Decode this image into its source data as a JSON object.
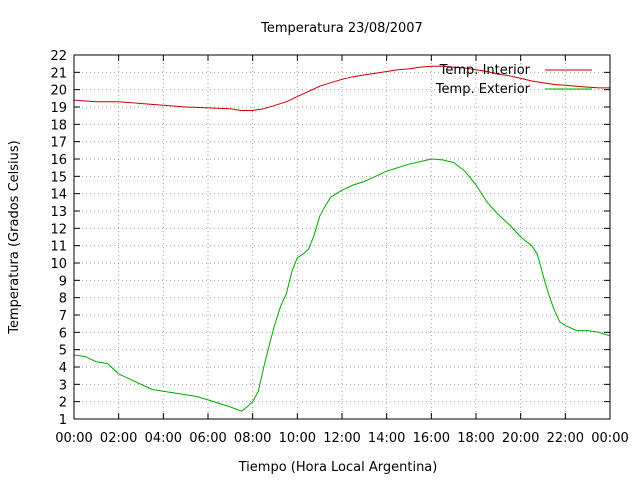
{
  "chart_data": {
    "type": "line",
    "title": "Temperatura 23/08/2007",
    "xlabel": "Tiempo (Hora Local Argentina)",
    "ylabel": "Temperatura (Grados Celsius)",
    "xlim": [
      0,
      24
    ],
    "ylim": [
      1,
      22
    ],
    "x_ticks": [
      "00:00",
      "02:00",
      "04:00",
      "06:00",
      "08:00",
      "10:00",
      "12:00",
      "14:00",
      "16:00",
      "18:00",
      "20:00",
      "22:00",
      "00:00"
    ],
    "y_ticks": [
      "1",
      "2",
      "3",
      "4",
      "5",
      "6",
      "7",
      "8",
      "9",
      "10",
      "11",
      "12",
      "13",
      "14",
      "15",
      "16",
      "17",
      "18",
      "19",
      "20",
      "21",
      "22"
    ],
    "grid": true,
    "legend_position": "top-right",
    "series": [
      {
        "name": "Temp. Interior",
        "color": "#cc0000",
        "x": [
          0,
          1,
          2,
          3,
          4,
          5,
          6,
          7,
          7.5,
          8,
          8.5,
          9,
          9.5,
          10,
          10.5,
          11,
          11.5,
          12,
          12.5,
          13,
          13.5,
          14,
          14.5,
          15,
          15.5,
          16,
          16.5,
          17,
          17.5,
          18,
          18.5,
          19,
          19.5,
          20,
          20.5,
          21,
          21.5,
          22,
          22.5,
          23,
          23.5,
          24
        ],
        "values": [
          19.4,
          19.3,
          19.3,
          19.2,
          19.1,
          19.0,
          18.95,
          18.9,
          18.8,
          18.8,
          18.9,
          19.1,
          19.3,
          19.6,
          19.9,
          20.2,
          20.4,
          20.6,
          20.75,
          20.85,
          20.95,
          21.05,
          21.15,
          21.2,
          21.3,
          21.35,
          21.35,
          21.3,
          21.25,
          21.15,
          21.05,
          20.9,
          20.8,
          20.65,
          20.5,
          20.4,
          20.3,
          20.25,
          20.2,
          20.15,
          20.1,
          20.1
        ]
      },
      {
        "name": "Temp. Exterior",
        "color": "#00aa00",
        "x": [
          0,
          0.5,
          1,
          1.5,
          2,
          2.5,
          3,
          3.5,
          4,
          4.5,
          5,
          5.5,
          6,
          6.5,
          7,
          7.5,
          7.75,
          8,
          8.25,
          8.5,
          8.75,
          9,
          9.25,
          9.5,
          9.75,
          10,
          10.25,
          10.5,
          10.75,
          11,
          11.25,
          11.5,
          11.75,
          12,
          12.5,
          13,
          13.5,
          14,
          14.5,
          15,
          15.5,
          16,
          16.5,
          17,
          17.5,
          18,
          18.5,
          19,
          19.5,
          20,
          20.5,
          20.75,
          21,
          21.25,
          21.5,
          21.75,
          22,
          22.5,
          23,
          23.5,
          24
        ],
        "values": [
          4.7,
          4.6,
          4.3,
          4.2,
          3.6,
          3.3,
          3.0,
          2.7,
          2.6,
          2.5,
          2.4,
          2.3,
          2.1,
          1.9,
          1.7,
          1.45,
          1.7,
          2.0,
          2.6,
          4.0,
          5.3,
          6.5,
          7.5,
          8.2,
          9.5,
          10.3,
          10.5,
          10.8,
          11.6,
          12.7,
          13.3,
          13.8,
          14.0,
          14.2,
          14.5,
          14.7,
          15.0,
          15.3,
          15.5,
          15.7,
          15.85,
          16.0,
          15.95,
          15.8,
          15.3,
          14.5,
          13.5,
          12.8,
          12.2,
          11.5,
          11.0,
          10.5,
          9.3,
          8.2,
          7.3,
          6.6,
          6.4,
          6.1,
          6.1,
          6.0,
          5.8
        ]
      }
    ]
  }
}
